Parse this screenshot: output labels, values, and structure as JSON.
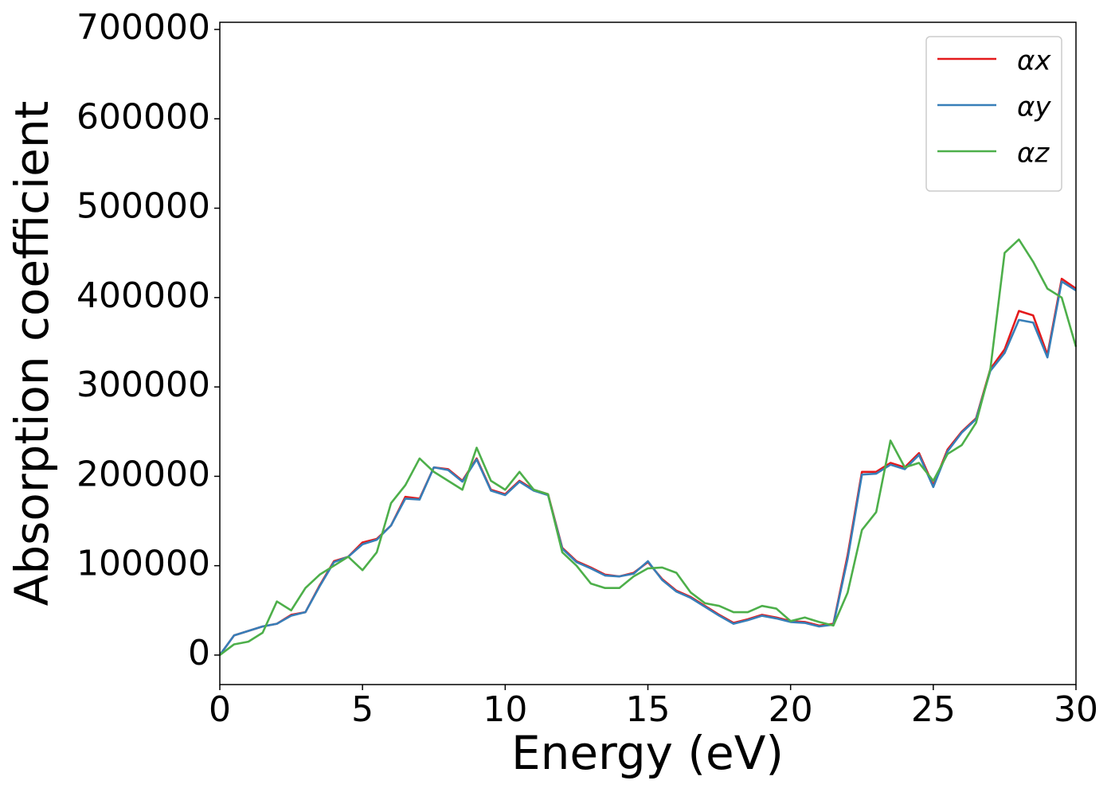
{
  "chart_data": {
    "type": "line",
    "xlabel": "Energy (eV)",
    "ylabel": "Absorption coefficient",
    "x": [
      0,
      0.5,
      1,
      1.5,
      2,
      2.5,
      3,
      3.5,
      4,
      4.5,
      5,
      5.5,
      6,
      6.5,
      7,
      7.5,
      8,
      8.5,
      9,
      9.5,
      10,
      10.5,
      11,
      11.5,
      12,
      12.5,
      13,
      13.5,
      14,
      14.5,
      15,
      15.5,
      16,
      16.5,
      17,
      17.5,
      18,
      18.5,
      19,
      19.5,
      20,
      20.5,
      21,
      21.5,
      22,
      22.5,
      23,
      23.5,
      24,
      24.5,
      25,
      25.5,
      26,
      26.5,
      27,
      27.5,
      28,
      28.5,
      29,
      29.5,
      30
    ],
    "series": [
      {
        "name": "αx",
        "color": "#e41a1c",
        "values": [
          0,
          22000,
          27000,
          32000,
          35000,
          45000,
          48000,
          78000,
          105000,
          110000,
          126000,
          130000,
          145000,
          177000,
          175000,
          210000,
          208000,
          195000,
          220000,
          185000,
          180000,
          195000,
          185000,
          180000,
          120000,
          105000,
          98000,
          90000,
          88000,
          92000,
          104000,
          85000,
          72000,
          65000,
          55000,
          45000,
          36000,
          40000,
          45000,
          42000,
          38000,
          37000,
          33000,
          35000,
          112000,
          205000,
          205000,
          215000,
          210000,
          226000,
          190000,
          230000,
          250000,
          265000,
          320000,
          342000,
          385000,
          380000,
          336000,
          421000,
          410000
        ]
      },
      {
        "name": "αy",
        "color": "#377eb8",
        "values": [
          0,
          22000,
          27000,
          32000,
          35000,
          44000,
          48000,
          77000,
          104000,
          110000,
          124000,
          129000,
          145000,
          175000,
          174000,
          210000,
          207000,
          194000,
          219000,
          184000,
          179000,
          194000,
          184000,
          179000,
          119000,
          104000,
          97000,
          89000,
          88000,
          91000,
          105000,
          84000,
          71000,
          64000,
          54000,
          44000,
          35000,
          39000,
          44000,
          41000,
          37000,
          36000,
          32000,
          34000,
          108000,
          202000,
          203000,
          213000,
          208000,
          224000,
          188000,
          228000,
          249000,
          264000,
          318000,
          338000,
          375000,
          372000,
          333000,
          418000,
          408000
        ]
      },
      {
        "name": "αz",
        "color": "#4daf4a",
        "values": [
          0,
          12000,
          15000,
          25000,
          60000,
          50000,
          75000,
          90000,
          100000,
          110000,
          95000,
          115000,
          170000,
          190000,
          220000,
          205000,
          195000,
          185000,
          232000,
          195000,
          185000,
          205000,
          185000,
          180000,
          115000,
          100000,
          80000,
          75000,
          75000,
          88000,
          97000,
          98000,
          92000,
          70000,
          58000,
          55000,
          48000,
          48000,
          55000,
          52000,
          38000,
          42000,
          37000,
          33000,
          70000,
          140000,
          160000,
          240000,
          210000,
          215000,
          195000,
          225000,
          235000,
          260000,
          320000,
          450000,
          465000,
          440000,
          410000,
          400000,
          345000
        ]
      }
    ],
    "xlim": [
      0,
      30
    ],
    "xticks": [
      0,
      5,
      10,
      15,
      20,
      25,
      30
    ],
    "ylim": [
      -33000,
      708000
    ],
    "yticks": [
      0,
      100000,
      200000,
      300000,
      400000,
      500000,
      600000,
      700000
    ],
    "grid": false,
    "legend": "upper right"
  }
}
